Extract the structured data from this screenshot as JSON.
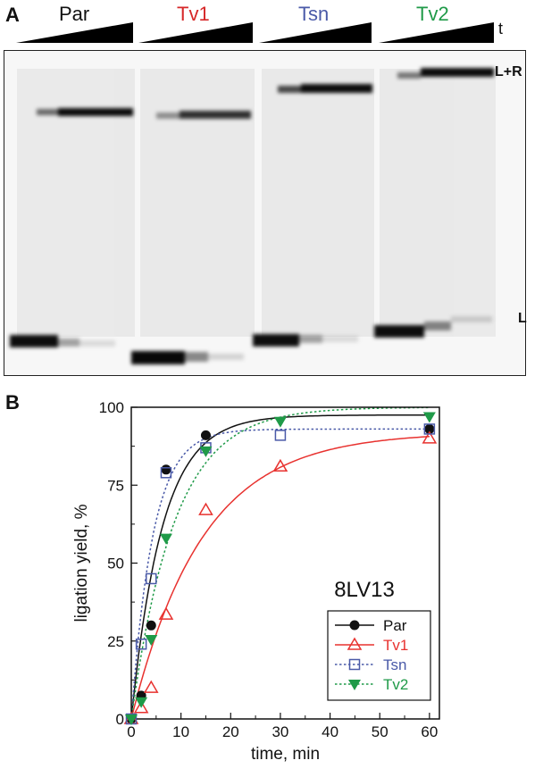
{
  "panel_a": {
    "letter": "A",
    "time_symbol": "t",
    "lanes": [
      {
        "label": "Par",
        "color": "#111111"
      },
      {
        "label": "Tv1",
        "color": "#d62728"
      },
      {
        "label": "Tsn",
        "color": "#4a5aa8"
      },
      {
        "label": "Tv2",
        "color": "#1f9a48"
      }
    ],
    "band_labels": {
      "upper": "L+R",
      "lower": "L"
    }
  },
  "panel_b": {
    "letter": "B",
    "annotation": "8LV13"
  },
  "chart_data": {
    "type": "scatter",
    "title": "",
    "xlabel": "time, min",
    "ylabel": "ligation yield, %",
    "xlim": [
      0,
      62
    ],
    "ylim": [
      0,
      100
    ],
    "xticks": [
      0,
      10,
      20,
      30,
      40,
      50,
      60
    ],
    "yticks": [
      0,
      25,
      50,
      75,
      100
    ],
    "legend_position": "right",
    "series": [
      {
        "name": "Par",
        "color": "#111111",
        "marker": "circle-filled",
        "line": "solid",
        "x": [
          0,
          2,
          4,
          7,
          15,
          60
        ],
        "y": [
          0,
          7.5,
          30,
          80,
          91,
          93
        ],
        "fit_plateau": 97.5,
        "fit_rate": 0.16
      },
      {
        "name": "Tv1",
        "color": "#e8322f",
        "marker": "triangle-up-open",
        "line": "solid",
        "x": [
          0,
          2,
          4,
          7,
          15,
          30,
          60
        ],
        "y": [
          0,
          3.5,
          10,
          33.5,
          67,
          81,
          90
        ],
        "fit_plateau": 92,
        "fit_rate": 0.07
      },
      {
        "name": "Tsn",
        "color": "#4a5aa8",
        "marker": "square-open",
        "line": "dotted",
        "x": [
          0,
          2,
          4,
          7,
          15,
          30,
          60
        ],
        "y": [
          0,
          24,
          45,
          79,
          87,
          91,
          93
        ],
        "fit_plateau": 93,
        "fit_rate": 0.23
      },
      {
        "name": "Tv2",
        "color": "#1f9a48",
        "marker": "triangle-down-filled",
        "line": "dotted",
        "x": [
          0,
          2,
          4,
          7,
          15,
          30,
          60
        ],
        "y": [
          0,
          5.5,
          25.5,
          58,
          86,
          95.5,
          97
        ],
        "fit_plateau": 100,
        "fit_rate": 0.115
      }
    ]
  }
}
